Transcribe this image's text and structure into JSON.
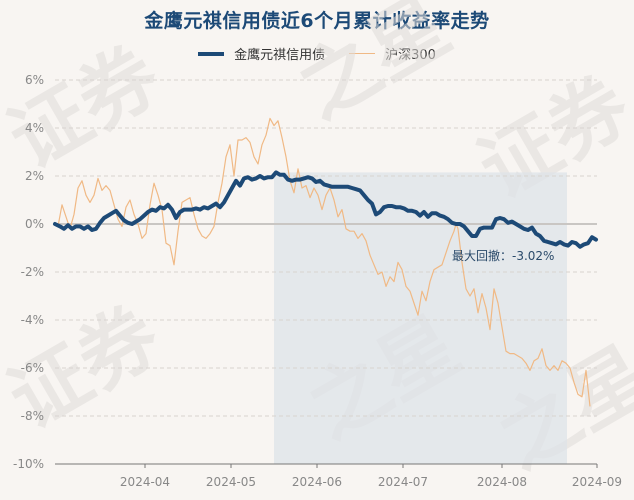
{
  "title": "金鹰元祺信用债近6个月累计收益率走势",
  "legend": [
    {
      "name": "金鹰元祺信用债",
      "color": "#1d4a77"
    },
    {
      "name": "沪深300",
      "color": "#f0b985"
    }
  ],
  "annotation": {
    "label": "最大回撤：-3.02%"
  },
  "watermark": "证券之星",
  "chart_data": {
    "type": "line",
    "title": "金鹰元祺信用债近6个月累计收益率走势",
    "xlabel": "",
    "ylabel": "",
    "ylim": [
      -10,
      6
    ],
    "yticks": [
      "6%",
      "4%",
      "2%",
      "0%",
      "-2%",
      "-4%",
      "-6%",
      "-8%",
      "-10%"
    ],
    "xticks": [
      "2024-04",
      "2024-05",
      "2024-06",
      "2024-07",
      "2024-08",
      "2024-09"
    ],
    "grid": true,
    "legend_position": "top",
    "max_drawdown": {
      "value": -3.02,
      "start": "2024-05-20",
      "end": "2024-08-23",
      "label": "最大回撤：-3.02%"
    },
    "series": [
      {
        "name": "金鹰元祺信用债",
        "color": "#1d4a77",
        "points": [
          [
            55,
            0.0
          ],
          [
            60,
            -0.1
          ],
          [
            64,
            -0.2
          ],
          [
            68,
            -0.05
          ],
          [
            72,
            -0.2
          ],
          [
            76,
            -0.1
          ],
          [
            80,
            -0.1
          ],
          [
            84,
            -0.2
          ],
          [
            88,
            -0.1
          ],
          [
            92,
            -0.25
          ],
          [
            96,
            -0.2
          ],
          [
            100,
            0.05
          ],
          [
            104,
            0.25
          ],
          [
            108,
            0.35
          ],
          [
            112,
            0.45
          ],
          [
            116,
            0.55
          ],
          [
            120,
            0.35
          ],
          [
            124,
            0.15
          ],
          [
            128,
            0.05
          ],
          [
            132,
            0.0
          ],
          [
            136,
            0.1
          ],
          [
            140,
            0.2
          ],
          [
            144,
            0.35
          ],
          [
            148,
            0.5
          ],
          [
            152,
            0.6
          ],
          [
            156,
            0.55
          ],
          [
            160,
            0.7
          ],
          [
            164,
            0.65
          ],
          [
            168,
            0.8
          ],
          [
            172,
            0.6
          ],
          [
            176,
            0.25
          ],
          [
            180,
            0.5
          ],
          [
            184,
            0.6
          ],
          [
            188,
            0.6
          ],
          [
            192,
            0.6
          ],
          [
            196,
            0.65
          ],
          [
            200,
            0.6
          ],
          [
            204,
            0.7
          ],
          [
            208,
            0.65
          ],
          [
            212,
            0.75
          ],
          [
            216,
            0.85
          ],
          [
            220,
            0.7
          ],
          [
            224,
            0.9
          ],
          [
            228,
            1.2
          ],
          [
            232,
            1.5
          ],
          [
            236,
            1.8
          ],
          [
            240,
            1.6
          ],
          [
            244,
            1.9
          ],
          [
            248,
            1.95
          ],
          [
            252,
            1.85
          ],
          [
            256,
            1.9
          ],
          [
            260,
            2.0
          ],
          [
            264,
            1.9
          ],
          [
            268,
            1.95
          ],
          [
            272,
            1.95
          ],
          [
            276,
            2.15
          ],
          [
            280,
            2.05
          ],
          [
            284,
            2.05
          ],
          [
            288,
            1.85
          ],
          [
            292,
            1.8
          ],
          [
            296,
            1.85
          ],
          [
            300,
            1.85
          ],
          [
            304,
            1.9
          ],
          [
            308,
            1.95
          ],
          [
            312,
            1.9
          ],
          [
            316,
            1.75
          ],
          [
            320,
            1.8
          ],
          [
            324,
            1.65
          ],
          [
            328,
            1.6
          ],
          [
            332,
            1.55
          ],
          [
            336,
            1.55
          ],
          [
            340,
            1.55
          ],
          [
            344,
            1.55
          ],
          [
            348,
            1.55
          ],
          [
            352,
            1.5
          ],
          [
            356,
            1.45
          ],
          [
            360,
            1.4
          ],
          [
            364,
            1.2
          ],
          [
            368,
            1.0
          ],
          [
            372,
            0.85
          ],
          [
            376,
            0.4
          ],
          [
            380,
            0.5
          ],
          [
            384,
            0.7
          ],
          [
            388,
            0.75
          ],
          [
            392,
            0.75
          ],
          [
            396,
            0.7
          ],
          [
            400,
            0.7
          ],
          [
            404,
            0.65
          ],
          [
            408,
            0.55
          ],
          [
            412,
            0.55
          ],
          [
            416,
            0.5
          ],
          [
            420,
            0.35
          ],
          [
            424,
            0.5
          ],
          [
            428,
            0.3
          ],
          [
            432,
            0.45
          ],
          [
            436,
            0.45
          ],
          [
            440,
            0.35
          ],
          [
            444,
            0.3
          ],
          [
            448,
            0.2
          ],
          [
            452,
            0.05
          ],
          [
            456,
            0.0
          ],
          [
            460,
            0.0
          ],
          [
            464,
            -0.1
          ],
          [
            468,
            -0.3
          ],
          [
            472,
            -0.5
          ],
          [
            476,
            -0.5
          ],
          [
            480,
            -0.2
          ],
          [
            484,
            -0.15
          ],
          [
            488,
            -0.15
          ],
          [
            492,
            -0.15
          ],
          [
            496,
            0.2
          ],
          [
            500,
            0.25
          ],
          [
            504,
            0.2
          ],
          [
            508,
            0.05
          ],
          [
            512,
            0.1
          ],
          [
            516,
            0.0
          ],
          [
            520,
            -0.1
          ],
          [
            524,
            -0.2
          ],
          [
            528,
            -0.25
          ],
          [
            532,
            -0.15
          ],
          [
            536,
            -0.4
          ],
          [
            540,
            -0.5
          ],
          [
            544,
            -0.7
          ],
          [
            548,
            -0.75
          ],
          [
            552,
            -0.8
          ],
          [
            556,
            -0.85
          ],
          [
            560,
            -0.75
          ],
          [
            564,
            -0.85
          ],
          [
            568,
            -0.9
          ],
          [
            572,
            -0.75
          ],
          [
            576,
            -0.8
          ],
          [
            580,
            -0.95
          ],
          [
            584,
            -0.85
          ],
          [
            588,
            -0.8
          ],
          [
            592,
            -0.55
          ],
          [
            596,
            -0.65
          ]
        ]
      },
      {
        "name": "沪深300",
        "color": "#f0b985",
        "points": [
          [
            55,
            0.0
          ],
          [
            58,
            -0.1
          ],
          [
            62,
            0.8
          ],
          [
            66,
            0.3
          ],
          [
            70,
            -0.2
          ],
          [
            74,
            0.4
          ],
          [
            78,
            1.5
          ],
          [
            82,
            1.8
          ],
          [
            86,
            1.2
          ],
          [
            90,
            0.9
          ],
          [
            94,
            1.2
          ],
          [
            98,
            1.9
          ],
          [
            102,
            1.4
          ],
          [
            106,
            1.6
          ],
          [
            110,
            1.4
          ],
          [
            114,
            0.8
          ],
          [
            118,
            0.2
          ],
          [
            122,
            -0.1
          ],
          [
            126,
            0.7
          ],
          [
            130,
            1.0
          ],
          [
            134,
            0.4
          ],
          [
            138,
            0.0
          ],
          [
            142,
            -0.6
          ],
          [
            146,
            -0.4
          ],
          [
            150,
            0.8
          ],
          [
            154,
            1.7
          ],
          [
            158,
            1.2
          ],
          [
            162,
            0.6
          ],
          [
            166,
            -0.8
          ],
          [
            170,
            -0.9
          ],
          [
            174,
            -1.7
          ],
          [
            178,
            -0.3
          ],
          [
            182,
            0.9
          ],
          [
            186,
            1.0
          ],
          [
            190,
            1.1
          ],
          [
            194,
            0.4
          ],
          [
            198,
            -0.2
          ],
          [
            202,
            -0.5
          ],
          [
            206,
            -0.6
          ],
          [
            210,
            -0.4
          ],
          [
            214,
            -0.1
          ],
          [
            218,
            0.9
          ],
          [
            222,
            1.7
          ],
          [
            226,
            2.8
          ],
          [
            230,
            3.3
          ],
          [
            234,
            2.0
          ],
          [
            238,
            3.5
          ],
          [
            242,
            3.5
          ],
          [
            246,
            3.6
          ],
          [
            250,
            3.4
          ],
          [
            254,
            2.8
          ],
          [
            258,
            2.5
          ],
          [
            262,
            3.3
          ],
          [
            266,
            3.7
          ],
          [
            270,
            4.4
          ],
          [
            274,
            4.1
          ],
          [
            278,
            4.3
          ],
          [
            282,
            3.6
          ],
          [
            286,
            2.8
          ],
          [
            290,
            1.8
          ],
          [
            294,
            1.3
          ],
          [
            298,
            2.3
          ],
          [
            302,
            1.5
          ],
          [
            306,
            1.6
          ],
          [
            310,
            1.1
          ],
          [
            314,
            1.5
          ],
          [
            318,
            1.2
          ],
          [
            322,
            0.6
          ],
          [
            326,
            1.2
          ],
          [
            330,
            1.5
          ],
          [
            334,
            1.0
          ],
          [
            338,
            0.3
          ],
          [
            342,
            0.6
          ],
          [
            346,
            -0.2
          ],
          [
            350,
            -0.3
          ],
          [
            354,
            -0.3
          ],
          [
            358,
            -0.6
          ],
          [
            362,
            -0.4
          ],
          [
            366,
            -0.7
          ],
          [
            370,
            -1.3
          ],
          [
            374,
            -1.7
          ],
          [
            378,
            -2.1
          ],
          [
            382,
            -2.0
          ],
          [
            386,
            -2.6
          ],
          [
            390,
            -2.2
          ],
          [
            394,
            -2.4
          ],
          [
            398,
            -1.6
          ],
          [
            402,
            -1.9
          ],
          [
            406,
            -2.6
          ],
          [
            410,
            -2.8
          ],
          [
            414,
            -3.3
          ],
          [
            418,
            -3.8
          ],
          [
            422,
            -2.8
          ],
          [
            426,
            -3.2
          ],
          [
            430,
            -2.4
          ],
          [
            434,
            -1.9
          ],
          [
            438,
            -1.8
          ],
          [
            442,
            -1.7
          ],
          [
            446,
            -1.2
          ],
          [
            450,
            -0.7
          ],
          [
            454,
            -0.3
          ],
          [
            456,
            0.0
          ],
          [
            458,
            -0.2
          ],
          [
            462,
            -1.6
          ],
          [
            466,
            -2.7
          ],
          [
            470,
            -3.0
          ],
          [
            474,
            -2.7
          ],
          [
            478,
            -3.7
          ],
          [
            482,
            -2.9
          ],
          [
            486,
            -3.5
          ],
          [
            490,
            -4.4
          ],
          [
            494,
            -2.7
          ],
          [
            498,
            -3.3
          ],
          [
            502,
            -4.3
          ],
          [
            506,
            -5.3
          ],
          [
            510,
            -5.4
          ],
          [
            514,
            -5.4
          ],
          [
            518,
            -5.5
          ],
          [
            522,
            -5.6
          ],
          [
            526,
            -5.8
          ],
          [
            530,
            -6.1
          ],
          [
            534,
            -5.7
          ],
          [
            538,
            -5.6
          ],
          [
            542,
            -5.2
          ],
          [
            546,
            -5.9
          ],
          [
            550,
            -6.1
          ],
          [
            554,
            -5.9
          ],
          [
            558,
            -6.1
          ],
          [
            562,
            -5.7
          ],
          [
            566,
            -5.8
          ],
          [
            570,
            -6.0
          ],
          [
            574,
            -6.6
          ],
          [
            578,
            -7.1
          ],
          [
            582,
            -7.2
          ],
          [
            586,
            -6.1
          ],
          [
            590,
            -7.6
          ]
        ]
      }
    ]
  }
}
